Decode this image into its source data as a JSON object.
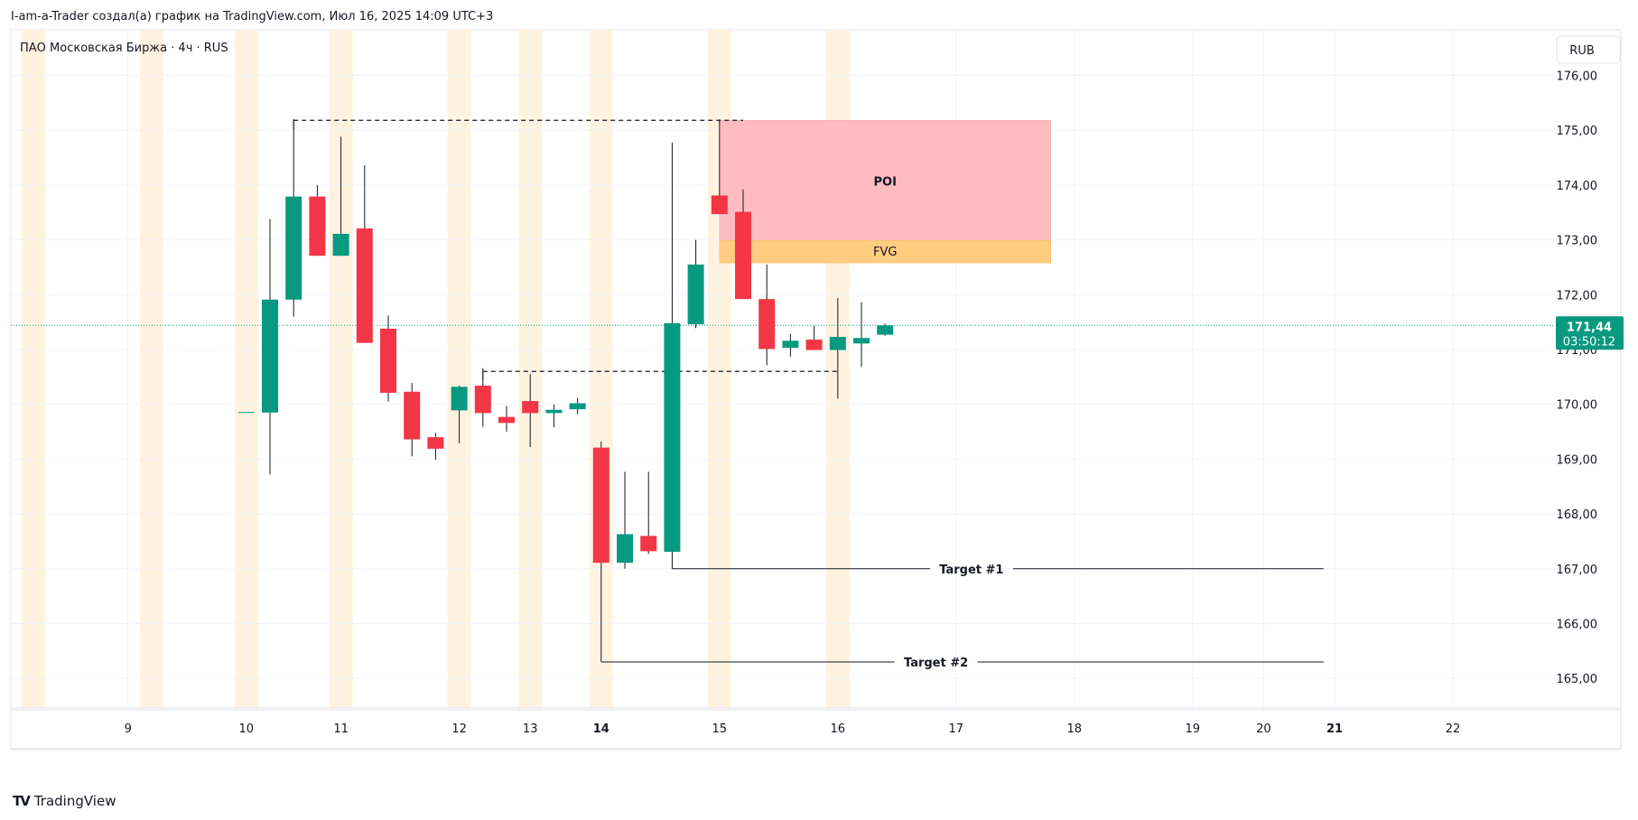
{
  "header": {
    "caption": "I-am-a-Trader создал(а) график на TradingView.com, Июл 16, 2025 14:09 UTC+3"
  },
  "legend": {
    "symbol_line": "ПАО Московская Биржа · 4ч · RUS"
  },
  "currency_button": "RUB",
  "footer": {
    "brand": "TradingView"
  },
  "colors": {
    "up": "#089981",
    "down": "#f23645",
    "session": "#fff3e0",
    "grid": "#f0f3fa",
    "poi_fill": "#ffbcc0",
    "fvg_fill": "#ffcc80",
    "price_line": "#089981"
  },
  "price_badge": {
    "price": "171,44",
    "countdown": "03:50:12"
  },
  "chart_data": {
    "type": "candlestick",
    "ylim": [
      164.45,
      176.4
    ],
    "y_ticks": [
      165,
      166,
      167,
      168,
      169,
      170,
      171,
      172,
      173,
      174,
      175,
      176
    ],
    "y_tick_labels": [
      "165,00",
      "166,00",
      "167,00",
      "168,00",
      "169,00",
      "170,00",
      "171,00",
      "172,00",
      "173,00",
      "174,00",
      "175,00",
      "176,00"
    ],
    "x_ticks": [
      {
        "label": "9",
        "i": -11,
        "bold": false
      },
      {
        "label": "10",
        "i": -6,
        "bold": false
      },
      {
        "label": "11",
        "i": -2,
        "bold": false
      },
      {
        "label": "12",
        "i": 3,
        "bold": false
      },
      {
        "label": "13",
        "i": 6,
        "bold": false
      },
      {
        "label": "14",
        "i": 9,
        "bold": true
      },
      {
        "label": "15",
        "i": 14,
        "bold": false
      },
      {
        "label": "16",
        "i": 19,
        "bold": false
      },
      {
        "label": "17",
        "i": 24,
        "bold": false
      },
      {
        "label": "18",
        "i": 29,
        "bold": false
      },
      {
        "label": "19",
        "i": 34,
        "bold": false
      },
      {
        "label": "20",
        "i": 37,
        "bold": false
      },
      {
        "label": "21",
        "i": 40,
        "bold": true
      },
      {
        "label": "22",
        "i": 45,
        "bold": false
      }
    ],
    "session_bars": [
      -20.5,
      -15,
      -10,
      -6,
      -2,
      3,
      6,
      9,
      14,
      19
    ],
    "candles": [
      {
        "i": -6,
        "o": 169.86,
        "h": 169.86,
        "l": 169.86,
        "c": 169.86
      },
      {
        "i": -5,
        "o": 169.85,
        "h": 173.38,
        "l": 168.72,
        "c": 171.91
      },
      {
        "i": -4,
        "o": 171.91,
        "h": 175.2,
        "l": 171.6,
        "c": 173.79
      },
      {
        "i": -3,
        "o": 173.79,
        "h": 174.0,
        "l": 172.71,
        "c": 172.71
      },
      {
        "i": -2,
        "o": 172.71,
        "h": 174.88,
        "l": 172.71,
        "c": 173.11
      },
      {
        "i": -1,
        "o": 173.21,
        "h": 174.36,
        "l": 171.12,
        "c": 171.12
      },
      {
        "i": 0,
        "o": 171.38,
        "h": 171.62,
        "l": 170.05,
        "c": 170.21
      },
      {
        "i": 1,
        "o": 170.23,
        "h": 170.39,
        "l": 169.05,
        "c": 169.36
      },
      {
        "i": 2,
        "o": 169.4,
        "h": 169.48,
        "l": 168.99,
        "c": 169.19
      },
      {
        "i": 3,
        "o": 169.89,
        "h": 170.34,
        "l": 169.29,
        "c": 170.32
      },
      {
        "i": 4,
        "o": 170.34,
        "h": 170.66,
        "l": 169.59,
        "c": 169.84
      },
      {
        "i": 5,
        "o": 169.77,
        "h": 169.97,
        "l": 169.5,
        "c": 169.66
      },
      {
        "i": 6,
        "o": 170.06,
        "h": 170.55,
        "l": 169.22,
        "c": 169.84
      },
      {
        "i": 7,
        "o": 169.84,
        "h": 170.0,
        "l": 169.58,
        "c": 169.9
      },
      {
        "i": 8,
        "o": 169.91,
        "h": 170.12,
        "l": 169.82,
        "c": 170.02
      },
      {
        "i": 9,
        "o": 169.21,
        "h": 169.32,
        "l": 167.11,
        "c": 167.11
      },
      {
        "i": 10,
        "o": 167.11,
        "h": 168.77,
        "l": 167.0,
        "c": 167.63
      },
      {
        "i": 11,
        "o": 167.6,
        "h": 168.77,
        "l": 167.27,
        "c": 167.32
      },
      {
        "i": 12,
        "o": 167.31,
        "h": 174.77,
        "l": 167.31,
        "c": 171.48
      },
      {
        "i": 13,
        "o": 171.46,
        "h": 173.0,
        "l": 171.39,
        "c": 172.55
      },
      {
        "i": 14,
        "o": 173.81,
        "h": 175.2,
        "l": 173.47,
        "c": 173.47
      },
      {
        "i": 15,
        "o": 173.51,
        "h": 173.92,
        "l": 171.92,
        "c": 171.92
      },
      {
        "i": 16,
        "o": 171.92,
        "h": 172.55,
        "l": 170.71,
        "c": 171.01
      },
      {
        "i": 17,
        "o": 171.03,
        "h": 171.29,
        "l": 170.87,
        "c": 171.16
      },
      {
        "i": 18,
        "o": 171.18,
        "h": 171.43,
        "l": 170.99,
        "c": 170.99
      },
      {
        "i": 19,
        "o": 170.99,
        "h": 171.94,
        "l": 170.1,
        "c": 171.23
      },
      {
        "i": 20,
        "o": 171.11,
        "h": 171.86,
        "l": 170.68,
        "c": 171.21
      },
      {
        "i": 21,
        "o": 171.27,
        "h": 171.47,
        "l": 171.25,
        "c": 171.44
      }
    ],
    "zones": [
      {
        "name": "POI",
        "i_from": 14,
        "i_to": 28,
        "from": 172.95,
        "to": 175.18
      },
      {
        "name": "FVG",
        "i_from": 14,
        "i_to": 28,
        "from": 172.58,
        "to": 172.99
      }
    ],
    "dashed_levels": [
      {
        "i_from": -4,
        "i_to": 15,
        "price": 175.18
      },
      {
        "i_from": 4,
        "i_to": 19,
        "price": 170.6
      }
    ],
    "target_lines": [
      {
        "label": "Target #1",
        "i_from": 12,
        "i_to": 39,
        "price": 167.0,
        "label_i": 24.5
      },
      {
        "label": "Target #2",
        "i_from": 9,
        "i_to": 39,
        "price": 165.3,
        "label_i": 23
      }
    ],
    "current_price": 171.44
  }
}
